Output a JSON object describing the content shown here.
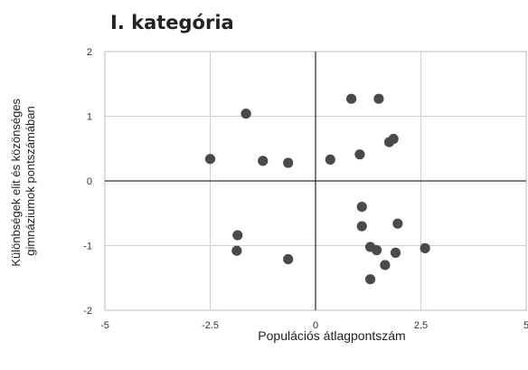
{
  "chart_data": {
    "type": "scatter",
    "title": "I. kategória",
    "xlabel": "Populációs átlagpontszám",
    "ylabel_lines": [
      "Különbségek elit és közönséges",
      "gimnáziumok pontszámában"
    ],
    "xlim": [
      -5,
      5
    ],
    "ylim": [
      -2,
      2
    ],
    "x_ticks": [
      -5,
      -2.5,
      0,
      2.5,
      5
    ],
    "y_ticks": [
      2,
      1,
      0,
      -1,
      -2
    ],
    "x_tick_labels": [
      "-5",
      "-2.5",
      "0",
      "2.5",
      "5"
    ],
    "y_tick_labels": [
      "2",
      "1",
      "0",
      "-1",
      "-2"
    ],
    "grid": true,
    "point_color": "#4a4a4a",
    "points": [
      {
        "x": -1.65,
        "y": 1.04
      },
      {
        "x": -2.5,
        "y": 0.34
      },
      {
        "x": -1.25,
        "y": 0.31
      },
      {
        "x": -0.65,
        "y": 0.28
      },
      {
        "x": -1.85,
        "y": -0.84
      },
      {
        "x": -1.87,
        "y": -1.08
      },
      {
        "x": -0.65,
        "y": -1.21
      },
      {
        "x": 0.85,
        "y": 1.27
      },
      {
        "x": 1.5,
        "y": 1.27
      },
      {
        "x": 0.35,
        "y": 0.33
      },
      {
        "x": 1.05,
        "y": 0.41
      },
      {
        "x": 1.75,
        "y": 0.6
      },
      {
        "x": 1.85,
        "y": 0.65
      },
      {
        "x": 1.1,
        "y": -0.4
      },
      {
        "x": 1.1,
        "y": -0.7
      },
      {
        "x": 1.95,
        "y": -0.66
      },
      {
        "x": 1.3,
        "y": -1.02
      },
      {
        "x": 1.45,
        "y": -1.07
      },
      {
        "x": 1.9,
        "y": -1.11
      },
      {
        "x": 2.6,
        "y": -1.04
      },
      {
        "x": 1.65,
        "y": -1.3
      },
      {
        "x": 1.3,
        "y": -1.52
      }
    ]
  }
}
